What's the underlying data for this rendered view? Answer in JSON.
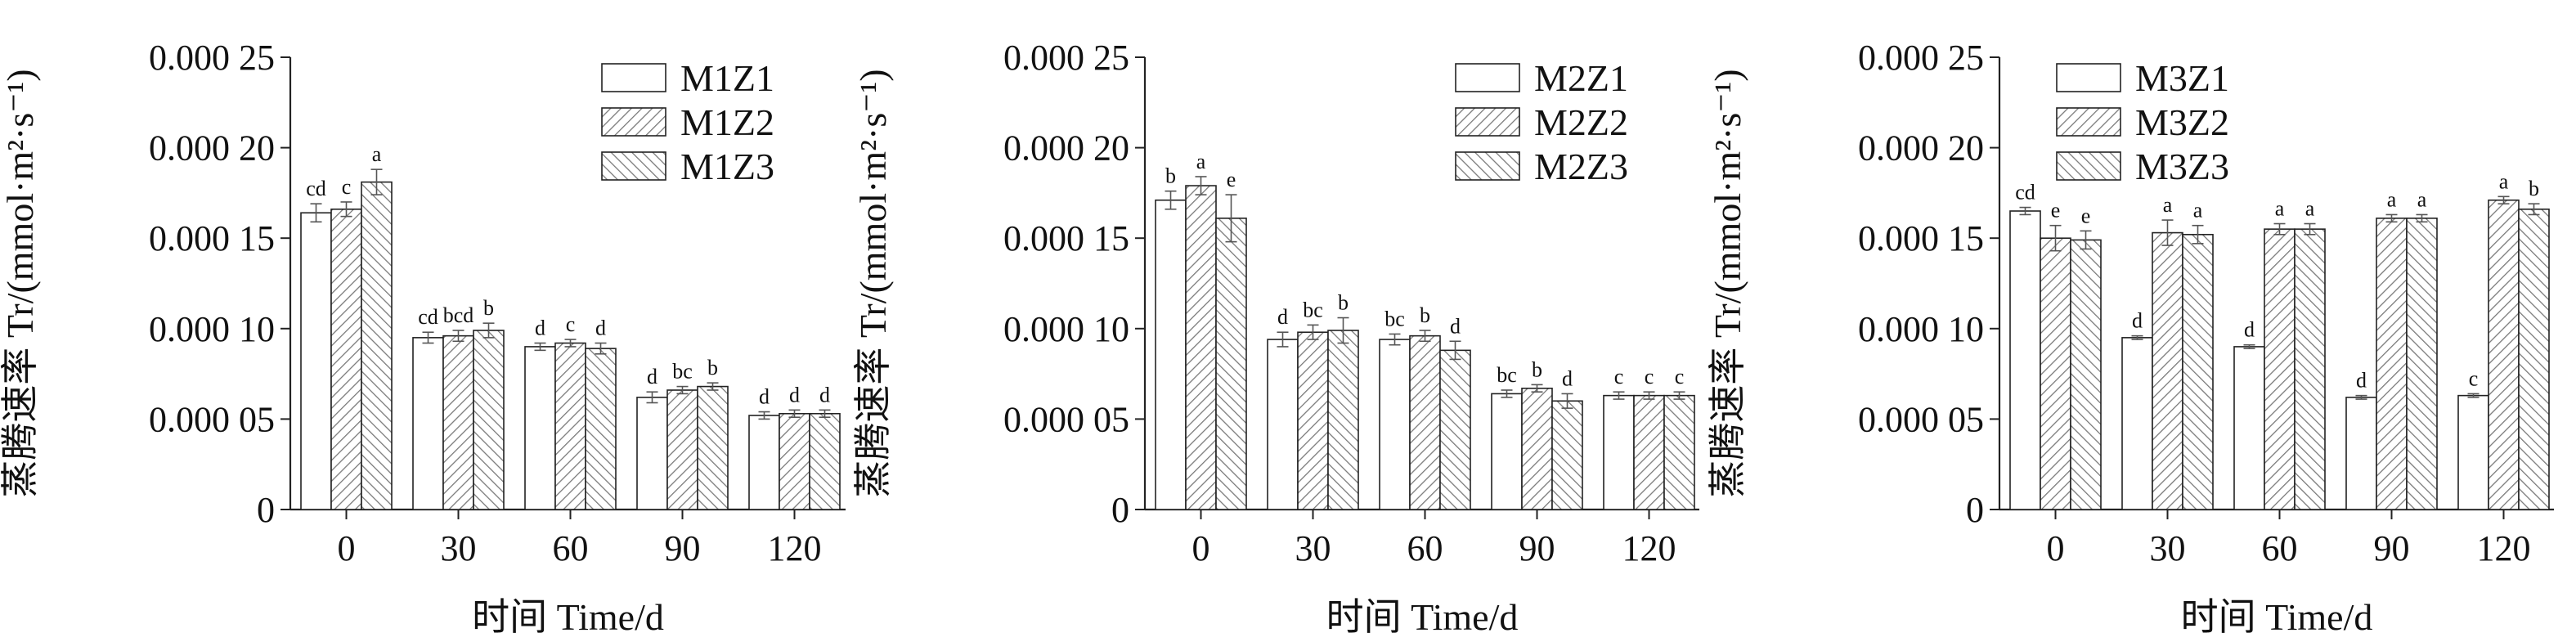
{
  "colors": {
    "bar_fill": "#ffffff",
    "stroke": "#222222",
    "hatch1": "#7a7a7a",
    "hatch2": "#7a7a7a"
  },
  "chart_data": [
    {
      "type": "bar",
      "categories": [
        "0",
        "30",
        "60",
        "90",
        "120"
      ],
      "xlabel": "时间 Time/d",
      "ylabel": "蒸腾速率 Tr/(mmol·m²·s⁻¹)",
      "ylim": [
        0,
        0.00025
      ],
      "yticks": [
        "0",
        "0.000 05",
        "0.000 10",
        "0.000 15",
        "0.000 20",
        "0.000 25"
      ],
      "legend_position": "top-right",
      "series": [
        {
          "name": "M1Z1",
          "pattern": "plain",
          "values": [
            0.000164,
            9.5e-05,
            9e-05,
            6.2e-05,
            5.2e-05
          ],
          "errors": [
            5e-06,
            3e-06,
            2e-06,
            3e-06,
            2e-06
          ],
          "labels": [
            "cd",
            "cd",
            "d",
            "d",
            "d"
          ]
        },
        {
          "name": "M1Z2",
          "pattern": "hatch1",
          "values": [
            0.000166,
            9.6e-05,
            9.2e-05,
            6.6e-05,
            5.3e-05
          ],
          "errors": [
            4e-06,
            3e-06,
            2e-06,
            2e-06,
            2e-06
          ],
          "labels": [
            "c",
            "bcd",
            "c",
            "bc",
            "d"
          ]
        },
        {
          "name": "M1Z3",
          "pattern": "hatch2",
          "values": [
            0.000181,
            9.9e-05,
            8.9e-05,
            6.8e-05,
            5.3e-05
          ],
          "errors": [
            7e-06,
            4e-06,
            3e-06,
            2e-06,
            2e-06
          ],
          "labels": [
            "a",
            "b",
            "d",
            "b",
            "d"
          ]
        }
      ]
    },
    {
      "type": "bar",
      "categories": [
        "0",
        "30",
        "60",
        "90",
        "120"
      ],
      "xlabel": "时间 Time/d",
      "ylabel": "蒸腾速率 Tr/(mmol·m²·s⁻¹)",
      "ylim": [
        0,
        0.00025
      ],
      "yticks": [
        "0",
        "0.000 05",
        "0.000 10",
        "0.000 15",
        "0.000 20",
        "0.000 25"
      ],
      "legend_position": "top-right",
      "series": [
        {
          "name": "M2Z1",
          "pattern": "plain",
          "values": [
            0.000171,
            9.4e-05,
            9.4e-05,
            6.4e-05,
            6.3e-05
          ],
          "errors": [
            5e-06,
            4e-06,
            3e-06,
            2e-06,
            2e-06
          ],
          "labels": [
            "b",
            "d",
            "bc",
            "bc",
            "c"
          ]
        },
        {
          "name": "M2Z2",
          "pattern": "hatch1",
          "values": [
            0.000179,
            9.8e-05,
            9.6e-05,
            6.7e-05,
            6.3e-05
          ],
          "errors": [
            5e-06,
            4e-06,
            3e-06,
            2e-06,
            2e-06
          ],
          "labels": [
            "a",
            "bc",
            "b",
            "b",
            "c"
          ]
        },
        {
          "name": "M2Z3",
          "pattern": "hatch2",
          "values": [
            0.000161,
            9.9e-05,
            8.8e-05,
            6e-05,
            6.3e-05
          ],
          "errors": [
            1.3e-05,
            7e-06,
            5e-06,
            4e-06,
            2e-06
          ],
          "labels": [
            "e",
            "b",
            "d",
            "d",
            "c"
          ]
        }
      ]
    },
    {
      "type": "bar",
      "categories": [
        "0",
        "30",
        "60",
        "90",
        "120"
      ],
      "xlabel": "时间 Time/d",
      "ylabel": "蒸腾速率 Tr/(mmol·m²·s⁻¹)",
      "ylim": [
        0,
        0.00025
      ],
      "yticks": [
        "0",
        "0.000 05",
        "0.000 10",
        "0.000 15",
        "0.000 20",
        "0.000 25"
      ],
      "legend_position": "top-left",
      "series": [
        {
          "name": "M3Z1",
          "pattern": "plain",
          "values": [
            0.000165,
            9.5e-05,
            9e-05,
            6.2e-05,
            6.3e-05
          ],
          "errors": [
            2e-06,
            1e-06,
            1e-06,
            1e-06,
            1e-06
          ],
          "labels": [
            "cd",
            "d",
            "d",
            "d",
            "c"
          ]
        },
        {
          "name": "M3Z2",
          "pattern": "hatch1",
          "values": [
            0.00015,
            0.000153,
            0.000155,
            0.000161,
            0.000171
          ],
          "errors": [
            7e-06,
            7e-06,
            3e-06,
            2e-06,
            2e-06
          ],
          "labels": [
            "e",
            "a",
            "a",
            "a",
            "a"
          ]
        },
        {
          "name": "M3Z3",
          "pattern": "hatch2",
          "values": [
            0.000149,
            0.000152,
            0.000155,
            0.000161,
            0.000166
          ],
          "errors": [
            5e-06,
            5e-06,
            3e-06,
            2e-06,
            3e-06
          ],
          "labels": [
            "e",
            "a",
            "a",
            "a",
            "b"
          ]
        }
      ]
    }
  ]
}
